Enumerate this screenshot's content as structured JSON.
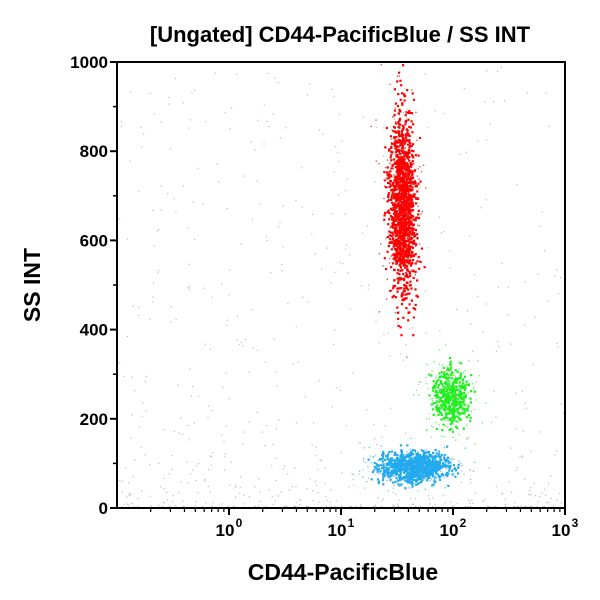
{
  "chart_data": {
    "type": "scatter",
    "title": "[Ungated] CD44-PacificBlue / SS INT",
    "xlabel": "CD44-PacificBlue",
    "ylabel": "SS INT",
    "x_scale": "log",
    "xlim": [
      0.1,
      1000
    ],
    "ylim": [
      0,
      1000
    ],
    "x_ticks": [
      {
        "value": 1,
        "base": "10",
        "exp": "0"
      },
      {
        "value": 10,
        "base": "10",
        "exp": "1"
      },
      {
        "value": 100,
        "base": "10",
        "exp": "2"
      },
      {
        "value": 1000,
        "base": "10",
        "exp": "3"
      }
    ],
    "y_ticks": [
      {
        "value": 0,
        "label": "0"
      },
      {
        "value": 200,
        "label": "200"
      },
      {
        "value": 400,
        "label": "400"
      },
      {
        "value": 600,
        "label": "600"
      },
      {
        "value": 800,
        "label": "800"
      },
      {
        "value": 1000,
        "label": "1000"
      }
    ],
    "grid": false,
    "legend": "none",
    "series": [
      {
        "color": "#ff0000",
        "center_x": 35,
        "center_y": 680,
        "x_range": [
          20,
          60
        ],
        "y_range": [
          390,
          1000
        ]
      },
      {
        "color": "#22ee22",
        "center_x": 95,
        "center_y": 250,
        "x_range": [
          40,
          160
        ],
        "y_range": [
          150,
          350
        ]
      },
      {
        "color": "#22aaee",
        "center_x": 45,
        "center_y": 95,
        "x_range": [
          10,
          150
        ],
        "y_range": [
          40,
          150
        ]
      },
      {
        "color": "#bbbbbb",
        "x_range": [
          0.1,
          1000
        ],
        "y_range": [
          0,
          1000
        ]
      }
    ]
  }
}
